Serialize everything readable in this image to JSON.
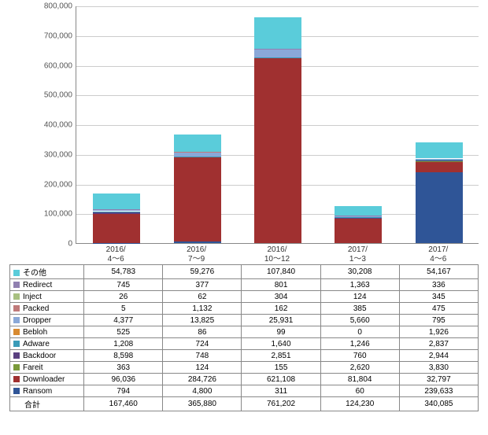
{
  "chart": {
    "type": "stacked-bar",
    "background_color": "#ffffff",
    "grid_color": "#cccccc",
    "axis_color": "#888888",
    "y_axis": {
      "min": 0,
      "max": 800000,
      "step": 100000,
      "ticks": [
        "0",
        "100,000",
        "200,000",
        "300,000",
        "400,000",
        "500,000",
        "600,000",
        "700,000",
        "800,000"
      ]
    },
    "x_labels": [
      "2016/\n4～6",
      "2016/\n7～9",
      "2016/\n10～12",
      "2017/\n1～3",
      "2017/\n4～6"
    ],
    "series": [
      {
        "key": "ransom",
        "label": "Ransom",
        "color": "#2f5597"
      },
      {
        "key": "downloader",
        "label": "Downloader",
        "color": "#a03030"
      },
      {
        "key": "fareit",
        "label": "Fareit",
        "color": "#7a9a3a"
      },
      {
        "key": "backdoor",
        "label": "Backdoor",
        "color": "#5a4080"
      },
      {
        "key": "adware",
        "label": "Adware",
        "color": "#3a9bb8"
      },
      {
        "key": "bebloh",
        "label": "Bebloh",
        "color": "#d88a30"
      },
      {
        "key": "dropper",
        "label": "Dropper",
        "color": "#8aa8d8"
      },
      {
        "key": "packed",
        "label": "Packed",
        "color": "#c07a7a"
      },
      {
        "key": "inject",
        "label": "Inject",
        "color": "#a8c080"
      },
      {
        "key": "redirect",
        "label": "Redirect",
        "color": "#9080b0"
      },
      {
        "key": "other",
        "label": "その他",
        "color": "#5accda"
      }
    ],
    "data": {
      "other": [
        54783,
        59276,
        107840,
        30208,
        54167
      ],
      "redirect": [
        745,
        377,
        801,
        1363,
        336
      ],
      "inject": [
        26,
        62,
        304,
        124,
        345
      ],
      "packed": [
        5,
        1132,
        162,
        385,
        475
      ],
      "dropper": [
        4377,
        13825,
        25931,
        5660,
        795
      ],
      "bebloh": [
        525,
        86,
        99,
        0,
        1926
      ],
      "adware": [
        1208,
        724,
        1640,
        1246,
        2837
      ],
      "backdoor": [
        8598,
        748,
        2851,
        760,
        2944
      ],
      "fareit": [
        363,
        124,
        155,
        2620,
        3830
      ],
      "downloader": [
        96036,
        284726,
        621108,
        81804,
        32797
      ],
      "ransom": [
        794,
        4800,
        311,
        60,
        239633
      ]
    },
    "totals_label": "合計",
    "totals": [
      "167,460",
      "365,880",
      "761,202",
      "124,230",
      "340,085"
    ]
  },
  "table": {
    "rows": [
      {
        "key": "other",
        "label": "その他",
        "color": "#5accda",
        "cells": [
          "54,783",
          "59,276",
          "107,840",
          "30,208",
          "54,167"
        ]
      },
      {
        "key": "redirect",
        "label": "Redirect",
        "color": "#9080b0",
        "cells": [
          "745",
          "377",
          "801",
          "1,363",
          "336"
        ]
      },
      {
        "key": "inject",
        "label": "Inject",
        "color": "#a8c080",
        "cells": [
          "26",
          "62",
          "304",
          "124",
          "345"
        ]
      },
      {
        "key": "packed",
        "label": "Packed",
        "color": "#c07a7a",
        "cells": [
          "5",
          "1,132",
          "162",
          "385",
          "475"
        ]
      },
      {
        "key": "dropper",
        "label": "Dropper",
        "color": "#8aa8d8",
        "cells": [
          "4,377",
          "13,825",
          "25,931",
          "5,660",
          "795"
        ]
      },
      {
        "key": "bebloh",
        "label": "Bebloh",
        "color": "#d88a30",
        "cells": [
          "525",
          "86",
          "99",
          "0",
          "1,926"
        ]
      },
      {
        "key": "adware",
        "label": "Adware",
        "color": "#3a9bb8",
        "cells": [
          "1,208",
          "724",
          "1,640",
          "1,246",
          "2,837"
        ]
      },
      {
        "key": "backdoor",
        "label": "Backdoor",
        "color": "#5a4080",
        "cells": [
          "8,598",
          "748",
          "2,851",
          "760",
          "2,944"
        ]
      },
      {
        "key": "fareit",
        "label": "Fareit",
        "color": "#7a9a3a",
        "cells": [
          "363",
          "124",
          "155",
          "2,620",
          "3,830"
        ]
      },
      {
        "key": "downloader",
        "label": "Downloader",
        "color": "#a03030",
        "cells": [
          "96,036",
          "284,726",
          "621,108",
          "81,804",
          "32,797"
        ]
      },
      {
        "key": "ransom",
        "label": "Ransom",
        "color": "#2f5597",
        "cells": [
          "794",
          "4,800",
          "311",
          "60",
          "239,633"
        ]
      }
    ]
  }
}
